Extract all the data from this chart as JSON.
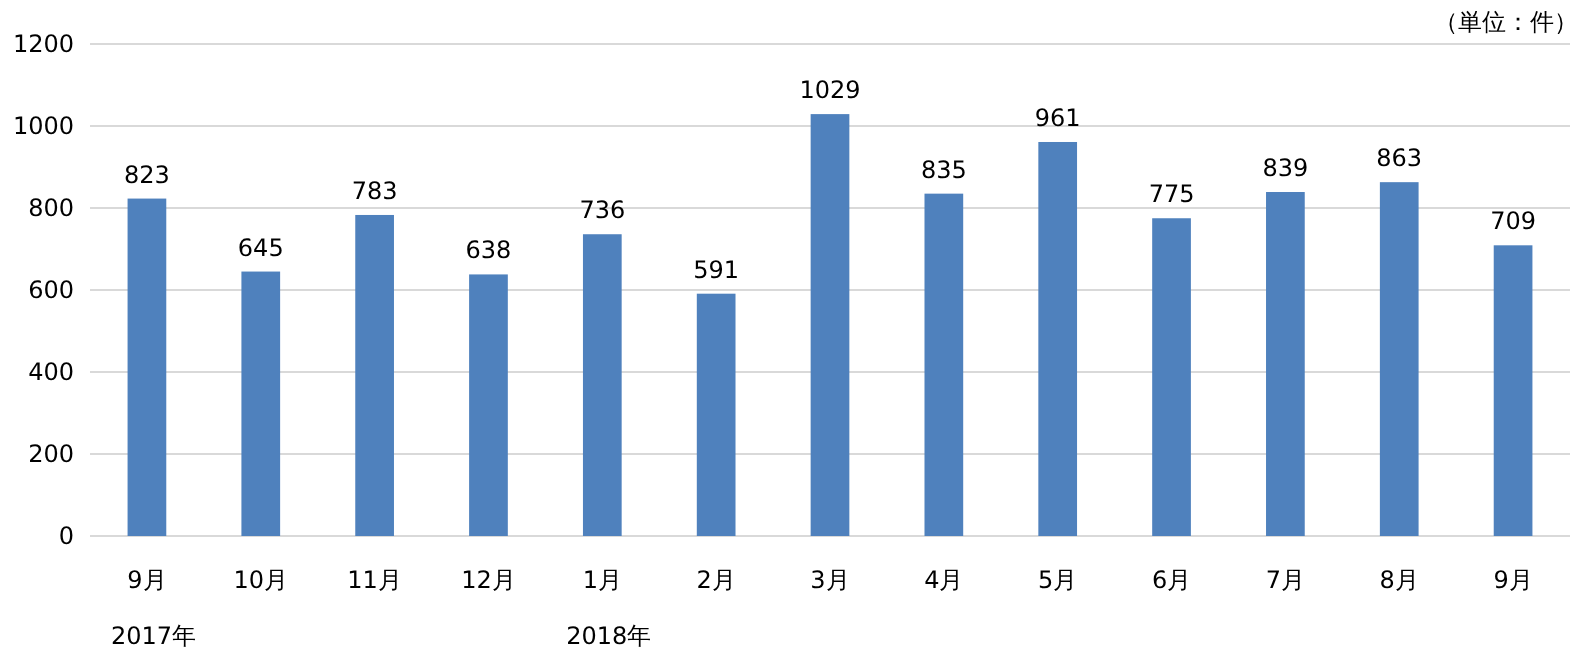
{
  "chart_data": {
    "type": "bar",
    "categories": [
      "9月",
      "10月",
      "11月",
      "12月",
      "1月",
      "2月",
      "3月",
      "4月",
      "5月",
      "6月",
      "7月",
      "8月",
      "9月"
    ],
    "values": [
      823,
      645,
      783,
      638,
      736,
      591,
      1029,
      835,
      961,
      775,
      839,
      863,
      709
    ],
    "color": "#4f81bd",
    "ylim": [
      0,
      1200
    ],
    "yticks": [
      0,
      200,
      400,
      600,
      800,
      1000,
      1200
    ],
    "grid": "y",
    "data_labels": true,
    "annotations": [
      "（単位：件）",
      "2017年",
      "2018年"
    ]
  }
}
